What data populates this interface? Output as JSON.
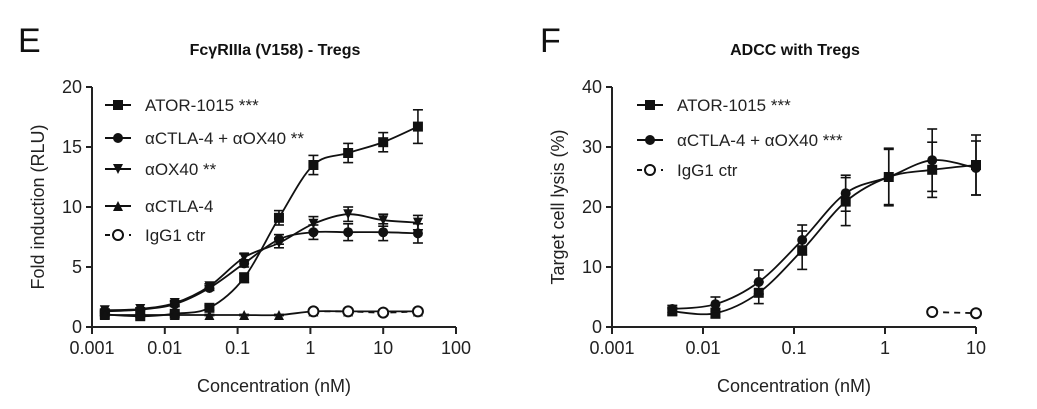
{
  "chart_data": [
    {
      "type": "line",
      "panel_label": "E",
      "title": "FcγRIIIa (V158) - Tregs",
      "xlabel": "Concentration (nM)",
      "ylabel": "Fold induction (RLU)",
      "xscale": "log",
      "xlim": [
        0.001,
        100
      ],
      "ylim": [
        0,
        20
      ],
      "xticks": [
        "0.001",
        "0.01",
        "0.1",
        "1",
        "10",
        "100"
      ],
      "yticks": [
        "0",
        "5",
        "10",
        "15",
        "20"
      ],
      "legend_position": "top-left",
      "grid": false,
      "series": [
        {
          "name": "ATOR-1015 ***",
          "marker": "square",
          "dashed": false,
          "x": [
            0.0015,
            0.0046,
            0.0137,
            0.041,
            0.123,
            0.37,
            1.1,
            3.3,
            10,
            30
          ],
          "y": [
            1.05,
            0.9,
            1.1,
            1.6,
            4.1,
            9.1,
            13.5,
            14.5,
            15.4,
            16.7
          ],
          "err": [
            0.1,
            0.1,
            0.1,
            0.2,
            0.4,
            0.6,
            0.8,
            0.8,
            0.8,
            1.4
          ]
        },
        {
          "name": "αCTLA-4 + αOX40 **",
          "marker": "circle",
          "dashed": false,
          "x": [
            0.0015,
            0.0046,
            0.0137,
            0.041,
            0.123,
            0.37,
            1.1,
            3.3,
            10,
            30
          ],
          "y": [
            1.3,
            1.45,
            1.9,
            3.25,
            5.3,
            7.3,
            7.9,
            7.9,
            7.9,
            7.8
          ],
          "err": [
            0.1,
            0.1,
            0.2,
            0.2,
            0.3,
            0.4,
            0.6,
            0.7,
            0.7,
            0.8
          ]
        },
        {
          "name": "αOX40 **",
          "marker": "triangle-down",
          "dashed": false,
          "x": [
            0.0015,
            0.0046,
            0.0137,
            0.041,
            0.123,
            0.37,
            1.1,
            3.3,
            10,
            30
          ],
          "y": [
            1.4,
            1.5,
            2.0,
            3.4,
            5.8,
            7.0,
            8.6,
            9.4,
            8.9,
            8.7
          ],
          "err": [
            0.1,
            0.1,
            0.2,
            0.2,
            0.3,
            0.4,
            0.6,
            0.6,
            0.5,
            0.6
          ]
        },
        {
          "name": "αCTLA-4",
          "marker": "triangle-up",
          "dashed": false,
          "x": [
            0.0015,
            0.0046,
            0.0137,
            0.041,
            0.123,
            0.37,
            1.1,
            3.3,
            10,
            30
          ],
          "y": [
            1.0,
            1.0,
            1.0,
            1.0,
            1.0,
            1.0,
            1.3,
            1.3,
            1.3,
            1.3
          ],
          "err": [
            0.05,
            0.05,
            0.05,
            0.05,
            0.05,
            0.05,
            0.1,
            0.1,
            0.1,
            0.1
          ]
        },
        {
          "name": "IgG1 ctr",
          "marker": "open-circle",
          "dashed": true,
          "x": [
            1.1,
            3.3,
            10,
            30
          ],
          "y": [
            1.3,
            1.3,
            1.2,
            1.3
          ],
          "err": [
            0.1,
            0.1,
            0.1,
            0.1
          ]
        }
      ]
    },
    {
      "type": "line",
      "panel_label": "F",
      "title": "ADCC with Tregs",
      "xlabel": "Concentration (nM)",
      "ylabel": "Target cell lysis (%)",
      "xscale": "log",
      "xlim": [
        0.001,
        10
      ],
      "ylim": [
        0,
        40
      ],
      "xticks": [
        "0.001",
        "0.01",
        "0.1",
        "1",
        "10"
      ],
      "yticks": [
        "0",
        "10",
        "20",
        "30",
        "40"
      ],
      "legend_position": "top-left",
      "grid": false,
      "series": [
        {
          "name": "ATOR-1015 ***",
          "marker": "square",
          "dashed": false,
          "x": [
            0.0046,
            0.0137,
            0.041,
            0.123,
            0.37,
            1.1,
            3.3,
            10
          ],
          "y": [
            2.6,
            2.3,
            5.7,
            12.8,
            20.9,
            25.0,
            26.2,
            27.0
          ],
          "err": [
            0.6,
            0.8,
            1.8,
            3.2,
            4.0,
            4.6,
            4.6,
            5.0
          ]
        },
        {
          "name": "αCTLA-4 + αOX40 ***",
          "marker": "circle",
          "dashed": false,
          "x": [
            0.0046,
            0.0137,
            0.041,
            0.123,
            0.37,
            1.1,
            3.3,
            10
          ],
          "y": [
            3.0,
            3.8,
            7.5,
            14.5,
            22.3,
            25.0,
            27.8,
            26.5
          ],
          "err": [
            0.6,
            1.2,
            2.0,
            2.5,
            3.0,
            4.8,
            5.2,
            4.5
          ]
        },
        {
          "name": "IgG1 ctr",
          "marker": "open-circle",
          "dashed": true,
          "x": [
            3.3,
            10
          ],
          "y": [
            2.5,
            2.3
          ],
          "err": [
            0.4,
            0.4
          ]
        }
      ]
    }
  ]
}
